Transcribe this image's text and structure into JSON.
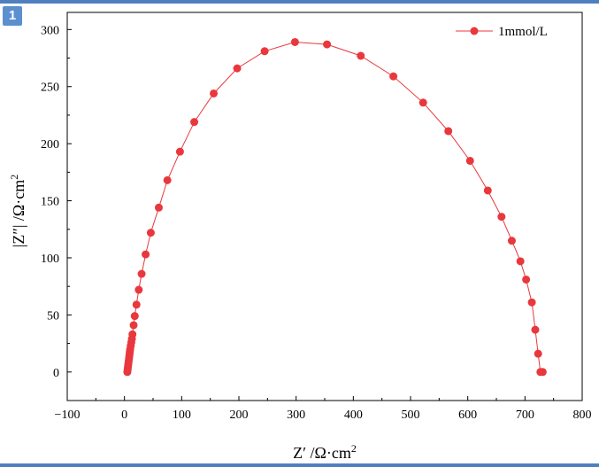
{
  "figure_label": "1",
  "colors": {
    "series": "#e8383d",
    "frame": "#000000",
    "accent": "#4f7fbf"
  },
  "chart_data": {
    "type": "scatter",
    "title": "",
    "xlabel_main": "Z′ /Ω·cm",
    "xlabel_sup": "2",
    "ylabel_main": "|Z″| /Ω·cm",
    "ylabel_sup": "2",
    "xlim": [
      -100,
      800
    ],
    "ylim": [
      -25,
      315
    ],
    "x_ticks": [
      -100,
      0,
      100,
      200,
      300,
      400,
      500,
      600,
      700,
      800
    ],
    "x_tick_labels": [
      "−100",
      "0",
      "100",
      "200",
      "300",
      "400",
      "500",
      "600",
      "700",
      "800"
    ],
    "y_ticks": [
      0,
      50,
      100,
      150,
      200,
      250,
      300
    ],
    "y_tick_labels": [
      "0",
      "50",
      "100",
      "150",
      "200",
      "250",
      "300"
    ],
    "legend_position": "top-right",
    "grid": false,
    "series": [
      {
        "name": "1mmol/L",
        "color": "#e8383d",
        "x": [
          5,
          5.5,
          6,
          6.5,
          7,
          7.5,
          8,
          8.5,
          9,
          9.5,
          10,
          11,
          12,
          13,
          14,
          16,
          18,
          21,
          25,
          30,
          37,
          46,
          60,
          75,
          97,
          122,
          156,
          197,
          245,
          298,
          354,
          413,
          470,
          522,
          566,
          604,
          635,
          659,
          677,
          692,
          702,
          712,
          718,
          723,
          727,
          731
        ],
        "y": [
          0,
          2,
          4,
          6,
          8,
          10,
          12,
          14,
          16,
          18,
          20,
          23,
          26,
          29,
          33,
          41,
          49,
          59,
          72,
          86,
          103,
          122,
          144,
          168,
          193,
          219,
          244,
          266,
          281,
          289,
          287,
          277,
          259,
          236,
          211,
          185,
          159,
          136,
          115,
          97,
          81,
          61,
          37,
          16,
          0,
          0
        ]
      }
    ]
  }
}
